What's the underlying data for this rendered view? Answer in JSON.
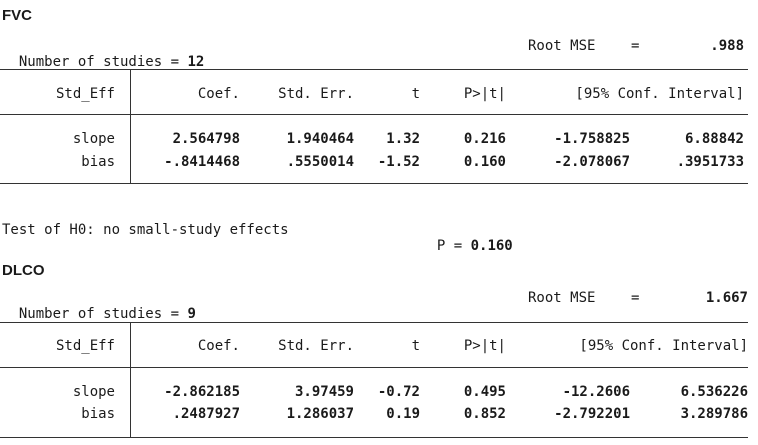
{
  "sections": [
    {
      "title": "FVC",
      "n_label": "Number of studies =",
      "n_value": "12",
      "rmse_label": "Root MSE",
      "rmse_eq": "=",
      "rmse_value": ".988",
      "columns": [
        "Std_Eff",
        "Coef.",
        "Std. Err.",
        "t",
        "P>|t|",
        "[95% Conf. Interval]"
      ],
      "rows": [
        {
          "name": "slope",
          "coef": "2.564798",
          "se": "1.940464",
          "t": "1.32",
          "p": "0.216",
          "ci_low": "-1.758825",
          "ci_high": "6.88842"
        },
        {
          "name": "bias",
          "coef": "-.8414468",
          "se": ".5550014",
          "t": "-1.52",
          "p": "0.160",
          "ci_low": "-2.078067",
          "ci_high": ".3951733"
        }
      ],
      "test_label": "Test of H0: no small-study effects",
      "test_p_label": "P =",
      "test_p_value": "0.160"
    },
    {
      "title": "DLCO",
      "n_label": "Number of studies =",
      "n_value": "9",
      "rmse_label": "Root MSE",
      "rmse_eq": "=",
      "rmse_value": "1.667",
      "columns": [
        "Std_Eff",
        "Coef.",
        "Std. Err.",
        "t",
        "P>|t|",
        "[95% Conf. Interval]"
      ],
      "rows": [
        {
          "name": "slope",
          "coef": "-2.862185",
          "se": "3.97459",
          "t": "-0.72",
          "p": "0.495",
          "ci_low": "-12.2606",
          "ci_high": "6.536226"
        },
        {
          "name": "bias",
          "coef": ".2487927",
          "se": "1.286037",
          "t": "0.19",
          "p": "0.852",
          "ci_low": "-2.792201",
          "ci_high": "3.289786"
        }
      ]
    }
  ]
}
